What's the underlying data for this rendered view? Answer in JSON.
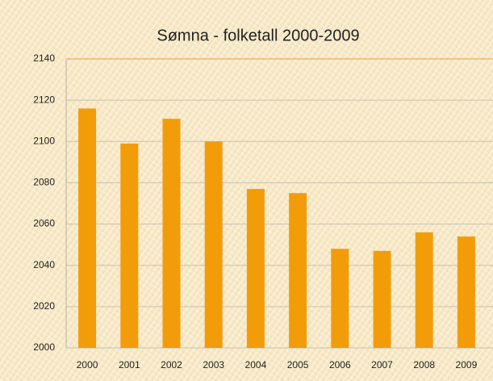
{
  "chart_data": {
    "type": "bar",
    "title": "Sømna - folketall 2000-2009",
    "categories": [
      "2000",
      "2001",
      "2002",
      "2003",
      "2004",
      "2005",
      "2006",
      "2007",
      "2008",
      "2009"
    ],
    "values": [
      2116,
      2099,
      2111,
      2100,
      2077,
      2075,
      2048,
      2047,
      2056,
      2054
    ],
    "color": "#f39c0a",
    "ylim": [
      2000,
      2140
    ],
    "yticks": [
      2000,
      2020,
      2040,
      2060,
      2080,
      2100,
      2120,
      2140
    ],
    "grid": true
  }
}
